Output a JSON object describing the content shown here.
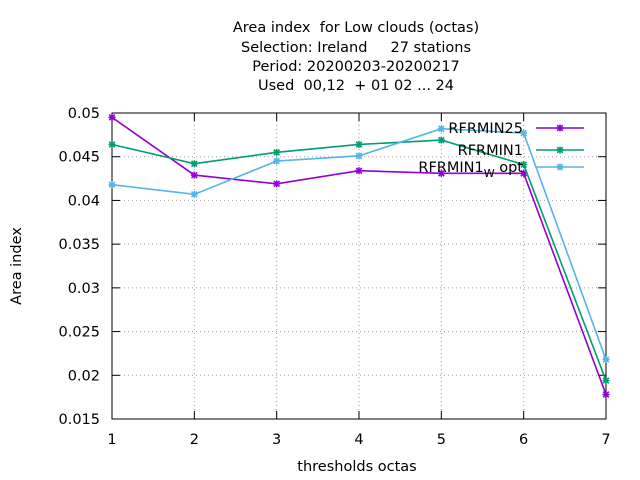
{
  "chart_data": {
    "type": "line",
    "title_lines": [
      "Area index  for Low clouds (octas)",
      "Selection: Ireland     27 stations",
      "Period: 20200203-20200217",
      "Used  00,12  + 01 02 ... 24"
    ],
    "xlabel": "thresholds octas",
    "ylabel": "Area index",
    "x": [
      1,
      2,
      3,
      4,
      5,
      6,
      7
    ],
    "x_ticks": [
      "1",
      "2",
      "3",
      "4",
      "5",
      "6",
      "7"
    ],
    "y_ticks": [
      "0.015",
      "0.02",
      "0.025",
      "0.03",
      "0.035",
      "0.04",
      "0.045",
      "0.05"
    ],
    "xlim": [
      1,
      7
    ],
    "ylim": [
      0.015,
      0.05
    ],
    "grid": true,
    "legend_position": "top-right",
    "series": [
      {
        "name": "RFRMIN25",
        "color": "#9400d3",
        "values": [
          0.0495,
          0.0429,
          0.0419,
          0.0434,
          0.0431,
          0.0431,
          0.0178
        ]
      },
      {
        "name": "RFRMIN1",
        "color": "#009e73",
        "values": [
          0.0464,
          0.0442,
          0.0455,
          0.0464,
          0.0469,
          0.0441,
          0.0194
        ]
      },
      {
        "name": "RFRMIN1_W opt",
        "legend_main": "RFRMIN1",
        "legend_sub": "W",
        "legend_tail": " opt",
        "color": "#56b4e9",
        "values": [
          0.0418,
          0.0407,
          0.0445,
          0.0451,
          0.0482,
          0.0477,
          0.0218
        ]
      }
    ]
  }
}
